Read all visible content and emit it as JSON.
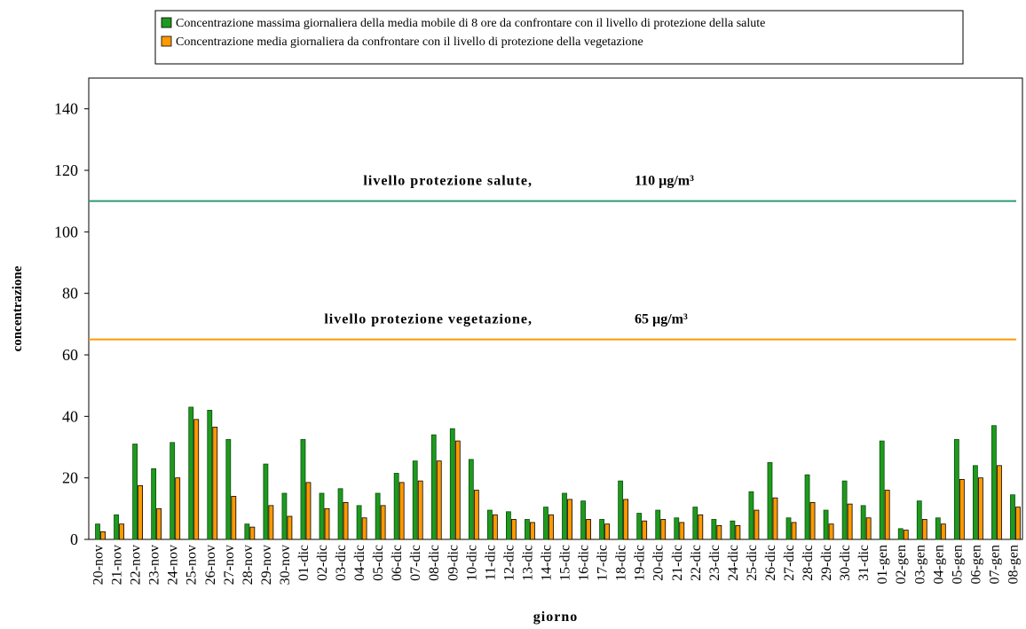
{
  "chart_data": {
    "type": "bar",
    "y_label": "concentrazione",
    "x_label": "giorno",
    "categories": [
      "20-nov",
      "21-nov",
      "22-nov",
      "23-nov",
      "24-nov",
      "25-nov",
      "26-nov",
      "27-nov",
      "28-nov",
      "29-nov",
      "30-nov",
      "01-dic",
      "02-dic",
      "03-dic",
      "04-dic",
      "05-dic",
      "06-dic",
      "07-dic",
      "08-dic",
      "09-dic",
      "10-dic",
      "11-dic",
      "12-dic",
      "13-dic",
      "14-dic",
      "15-dic",
      "16-dic",
      "17-dic",
      "18-dic",
      "19-dic",
      "20-dic",
      "21-dic",
      "22-dic",
      "23-dic",
      "24-dic",
      "25-dic",
      "26-dic",
      "27-dic",
      "28-dic",
      "29-dic",
      "30-dic",
      "31-dic",
      "01-gen",
      "02-gen",
      "03-gen",
      "04-gen",
      "05-gen",
      "06-gen",
      "07-gen",
      "08-gen"
    ],
    "series": [
      {
        "name": "Concentrazione massima giornaliera della media mobile di 8 ore da confrontare con il livello di protezione della salute",
        "color": "#1e9a1e",
        "values": [
          5,
          8,
          31,
          23,
          31.5,
          43,
          42,
          32.5,
          5,
          24.5,
          15,
          32.5,
          15,
          16.5,
          11,
          15,
          21.5,
          25.5,
          34,
          36,
          26,
          9.5,
          9,
          6.5,
          10.5,
          15,
          12.5,
          6.5,
          19,
          8.5,
          9.5,
          7,
          10.5,
          6.5,
          6,
          15.5,
          25,
          7,
          21,
          9.5,
          19,
          11,
          32,
          3.5,
          12.5,
          7,
          32.5,
          24,
          37,
          14.5
        ]
      },
      {
        "name": "Concentrazione media giornaliera da confrontare con il livello di protezione della vegetazione",
        "color": "#ff9900",
        "values": [
          2.5,
          5,
          17.5,
          10,
          20,
          39,
          36.5,
          14,
          4,
          11,
          7.5,
          18.5,
          10,
          12,
          7,
          11,
          18.5,
          19,
          25.5,
          32,
          16,
          8,
          6.5,
          5.5,
          8,
          13,
          6.5,
          5,
          13,
          6,
          6.5,
          5.5,
          8,
          4.5,
          4.5,
          9.5,
          13.5,
          5.5,
          12,
          5,
          11.5,
          7,
          16,
          3,
          6.5,
          5,
          19.5,
          20,
          24,
          10.5
        ]
      }
    ],
    "reference_lines": [
      {
        "label": "livello protezione salute,",
        "value": 110,
        "value_label": "110 µg/m³",
        "color": "#339977"
      },
      {
        "label": "livello protezione vegetazione,",
        "value": 65,
        "value_label": "65 µg/m³",
        "color": "#ff9900"
      }
    ],
    "ylim": [
      0,
      150
    ],
    "yticks": [
      0,
      20,
      40,
      60,
      80,
      100,
      120,
      140
    ],
    "grid": false,
    "legend": "top"
  }
}
